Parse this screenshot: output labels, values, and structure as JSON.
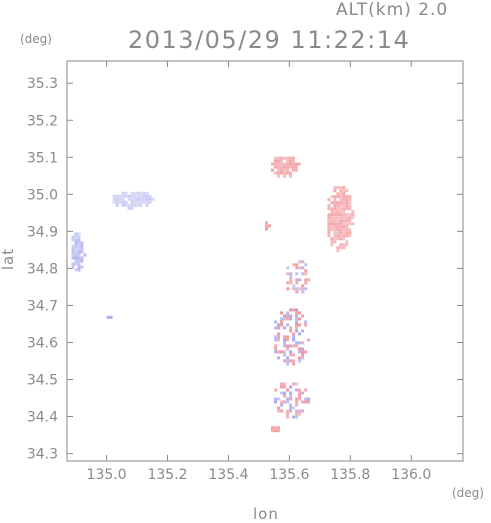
{
  "header": {
    "altitude_label": "ALT(km) 2.0",
    "timestamp": "2013/05/29 11:22:14"
  },
  "chart_data": {
    "type": "heatmap",
    "title": "2013/05/29 11:22:14",
    "xlabel": "lon",
    "ylabel": "lat",
    "x_unit": "(deg)",
    "y_unit": "(deg)",
    "xlim": [
      134.87,
      136.17
    ],
    "ylim": [
      34.28,
      35.36
    ],
    "x_ticks": [
      135.0,
      135.2,
      135.4,
      135.6,
      135.8,
      136.0
    ],
    "x_tick_labels": [
      "135.0",
      "135.2",
      "135.4",
      "135.6",
      "135.8",
      "136.0"
    ],
    "y_ticks": [
      34.3,
      34.4,
      34.5,
      34.6,
      34.7,
      34.8,
      34.9,
      35.0,
      35.1,
      35.2,
      35.3
    ],
    "y_tick_labels": [
      "34.3",
      "34.4",
      "34.5",
      "34.6",
      "34.7",
      "34.8",
      "34.9",
      "35.0",
      "35.1",
      "35.2",
      "35.3"
    ],
    "colors": {
      "positive": "#f08a90",
      "negative": "#9a9af0",
      "light_positive": "#f7c4c6",
      "light_negative": "#d6d6f7"
    },
    "regions": [
      {
        "lon": 134.9,
        "lat": 34.85,
        "rlon": 0.025,
        "rlat": 0.055,
        "sign": "negative",
        "strength": 0.5
      },
      {
        "lon": 135.08,
        "lat": 34.99,
        "rlon": 0.07,
        "rlat": 0.025,
        "sign": "negative",
        "strength": 0.25
      },
      {
        "lon": 135.0,
        "lat": 34.67,
        "rlon": 0.01,
        "rlat": 0.01,
        "sign": "negative",
        "strength": 0.8
      },
      {
        "lon": 135.58,
        "lat": 35.08,
        "rlon": 0.05,
        "rlat": 0.03,
        "sign": "positive",
        "strength": 0.55
      },
      {
        "lon": 135.76,
        "lat": 34.94,
        "rlon": 0.045,
        "rlat": 0.09,
        "sign": "positive",
        "strength": 0.5
      },
      {
        "lon": 135.52,
        "lat": 34.92,
        "rlon": 0.01,
        "rlat": 0.015,
        "sign": "positive",
        "strength": 0.8
      },
      {
        "lon": 135.62,
        "lat": 34.78,
        "rlon": 0.04,
        "rlat": 0.05,
        "sign": "mixed",
        "strength": 0.7
      },
      {
        "lon": 135.6,
        "lat": 34.62,
        "rlon": 0.06,
        "rlat": 0.08,
        "sign": "mixed",
        "strength": 0.85
      },
      {
        "lon": 135.6,
        "lat": 34.45,
        "rlon": 0.06,
        "rlat": 0.05,
        "sign": "mixed",
        "strength": 0.7
      },
      {
        "lon": 135.55,
        "lat": 34.37,
        "rlon": 0.02,
        "rlat": 0.012,
        "sign": "positive",
        "strength": 0.85
      }
    ]
  }
}
